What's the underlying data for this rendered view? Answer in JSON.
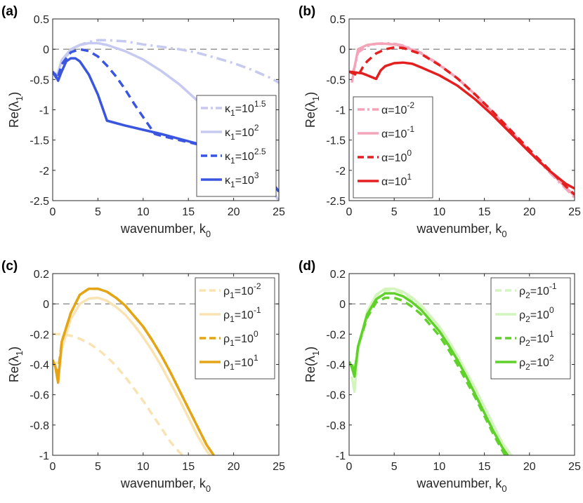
{
  "chart_data": [
    {
      "panel": "(a)",
      "type": "line",
      "xlabel": "wavenumber, k",
      "xlabel_sub": "0",
      "ylabel": "Re(λ",
      "ylabel_sub": "1",
      "ylabel_end": ")",
      "xlim": [
        0,
        25
      ],
      "ylim": [
        -2.5,
        0.5
      ],
      "xticks": [
        0,
        5,
        10,
        15,
        20,
        25
      ],
      "yticks": [
        0.5,
        0,
        -0.5,
        -1,
        -1.5,
        -2,
        -2.5
      ],
      "ytick_labels": [
        "0.5",
        "0",
        "-0.5",
        "-1",
        "-1.5",
        "-2",
        "-2.5"
      ],
      "legend_position": "lower-right",
      "series": [
        {
          "name": "κ1=10^1.5",
          "label_base": "κ",
          "label_sub": "1",
          "label_mid": "=10",
          "label_sup": "1.5",
          "color": "#c6c9f0",
          "dash": "dashdot",
          "x": [
            0,
            0.5,
            1,
            2,
            3,
            4,
            5,
            6,
            8,
            10,
            12,
            14,
            16,
            18,
            20,
            22,
            24,
            25
          ],
          "y": [
            -0.37,
            -0.42,
            -0.2,
            -0.03,
            0.07,
            0.12,
            0.15,
            0.15,
            0.13,
            0.08,
            0.04,
            0.0,
            -0.06,
            -0.14,
            -0.23,
            -0.34,
            -0.47,
            -0.55
          ]
        },
        {
          "name": "κ1=10^2",
          "label_base": "κ",
          "label_sub": "1",
          "label_mid": "=10",
          "label_sup": "2",
          "color": "#c6c9f0",
          "dash": "solid",
          "x": [
            0,
            0.5,
            1,
            2,
            3,
            4,
            5,
            6,
            8,
            10,
            12,
            14,
            16,
            18,
            20,
            22,
            24,
            25
          ],
          "y": [
            -0.37,
            -0.44,
            -0.18,
            0.0,
            0.07,
            0.1,
            0.1,
            0.07,
            -0.03,
            -0.17,
            -0.36,
            -0.58,
            -0.85,
            -1.15,
            -1.5,
            -1.88,
            -2.28,
            -2.5
          ]
        },
        {
          "name": "κ1=10^2.5",
          "label_base": "κ",
          "label_sub": "1",
          "label_mid": "=10",
          "label_sup": "2.5",
          "color": "#3a55df",
          "dash": "dashed",
          "x": [
            0,
            0.5,
            1,
            2,
            3,
            4,
            5,
            6,
            7,
            8,
            9,
            10,
            11.3,
            12,
            14,
            16,
            18,
            20,
            22,
            24,
            25
          ],
          "y": [
            -0.37,
            -0.5,
            -0.25,
            -0.05,
            0.0,
            -0.03,
            -0.12,
            -0.27,
            -0.45,
            -0.66,
            -0.9,
            -1.12,
            -1.4,
            -1.43,
            -1.5,
            -1.57,
            -1.65,
            -1.75,
            -1.9,
            -2.15,
            -2.35
          ]
        },
        {
          "name": "κ1=10^3",
          "label_base": "κ",
          "label_sub": "1",
          "label_mid": "=10",
          "label_sup": "3",
          "color": "#3a55df",
          "dash": "solid",
          "x": [
            0,
            0.3,
            0.6,
            0.9,
            1.5,
            2,
            2.5,
            3,
            4,
            5,
            6,
            7,
            8,
            10,
            12,
            14,
            16,
            18,
            20,
            22,
            24,
            25
          ],
          "y": [
            -0.38,
            -0.42,
            -0.52,
            -0.4,
            -0.2,
            -0.15,
            -0.15,
            -0.2,
            -0.42,
            -0.75,
            -1.18,
            -1.22,
            -1.26,
            -1.33,
            -1.4,
            -1.48,
            -1.56,
            -1.65,
            -1.75,
            -1.9,
            -2.15,
            -2.35
          ]
        }
      ]
    },
    {
      "panel": "(b)",
      "type": "line",
      "xlabel": "wavenumber, k",
      "xlabel_sub": "0",
      "ylabel": "Re(λ",
      "ylabel_sub": "1",
      "ylabel_end": ")",
      "xlim": [
        0,
        25
      ],
      "ylim": [
        -2.5,
        0.5
      ],
      "xticks": [
        0,
        5,
        10,
        15,
        20,
        25
      ],
      "yticks": [
        0.5,
        0,
        -0.5,
        -1,
        -1.5,
        -2,
        -2.5
      ],
      "ytick_labels": [
        "0.5",
        "0",
        "-0.5",
        "-1",
        "-1.5",
        "-2",
        "-2.5"
      ],
      "legend_position": "lower-left",
      "series": [
        {
          "name": "α=10^-2",
          "label_base": "α",
          "label_sub": "",
          "label_mid": "=10",
          "label_sup": "-2",
          "color": "#f4a4b8",
          "dash": "dashdot",
          "x": [
            0.3,
            0.6,
            1,
            2,
            3,
            4,
            5,
            6,
            8,
            10,
            12,
            14,
            16,
            18,
            20,
            22,
            24,
            25
          ],
          "y": [
            -0.42,
            -0.3,
            -0.05,
            0.05,
            0.09,
            0.1,
            0.09,
            0.06,
            -0.06,
            -0.25,
            -0.48,
            -0.76,
            -1.06,
            -1.37,
            -1.7,
            -2.0,
            -2.3,
            -2.45
          ]
        },
        {
          "name": "α=10^-1",
          "label_base": "α",
          "label_sub": "",
          "label_mid": "=10",
          "label_sup": "-1",
          "color": "#f4a4b8",
          "dash": "solid",
          "x": [
            0.3,
            0.6,
            1,
            2,
            3,
            4,
            5,
            6,
            8,
            10,
            12,
            14,
            16,
            18,
            20,
            22,
            24,
            25
          ],
          "y": [
            -0.55,
            -0.3,
            0.0,
            0.07,
            0.09,
            0.09,
            0.08,
            0.05,
            -0.07,
            -0.26,
            -0.48,
            -0.75,
            -1.05,
            -1.36,
            -1.68,
            -1.98,
            -2.28,
            -2.42
          ]
        },
        {
          "name": "α=10^0",
          "label_base": "α",
          "label_sub": "",
          "label_mid": "=10",
          "label_sup": "0",
          "color": "#e41f1f",
          "dash": "dashed",
          "x": [
            0,
            0.5,
            1,
            1.5,
            2,
            3,
            4,
            5,
            6,
            8,
            10,
            12,
            14,
            16,
            18,
            20,
            22,
            24,
            25
          ],
          "y": [
            -0.37,
            -0.4,
            -0.44,
            -0.3,
            -0.2,
            -0.07,
            0.0,
            0.03,
            0.02,
            -0.08,
            -0.26,
            -0.48,
            -0.75,
            -1.04,
            -1.35,
            -1.66,
            -1.96,
            -2.26,
            -2.4
          ]
        },
        {
          "name": "α=10^1",
          "label_base": "α",
          "label_sub": "",
          "label_mid": "=10",
          "label_sup": "1",
          "color": "#e41f1f",
          "dash": "solid",
          "x": [
            0,
            0.5,
            1,
            1.5,
            2,
            2.5,
            3,
            3.5,
            4,
            5,
            6,
            7,
            8,
            10,
            12,
            14,
            16,
            18,
            20,
            22,
            24,
            25
          ],
          "y": [
            -0.37,
            -0.38,
            -0.39,
            -0.4,
            -0.43,
            -0.46,
            -0.49,
            -0.35,
            -0.28,
            -0.23,
            -0.22,
            -0.24,
            -0.3,
            -0.43,
            -0.6,
            -0.83,
            -1.1,
            -1.4,
            -1.7,
            -1.98,
            -2.22,
            -2.3
          ]
        }
      ]
    },
    {
      "panel": "(c)",
      "type": "line",
      "xlabel": "wavenumber, k",
      "xlabel_sub": "0",
      "ylabel": "Re(λ",
      "ylabel_sub": "1",
      "ylabel_end": ")",
      "xlim": [
        0,
        25
      ],
      "ylim": [
        -1,
        0.2
      ],
      "xticks": [
        0,
        5,
        10,
        15,
        20,
        25
      ],
      "yticks": [
        0.2,
        0,
        -0.2,
        -0.4,
        -0.6,
        -0.8,
        -1
      ],
      "ytick_labels": [
        "0.2",
        "0",
        "-0.2",
        "-0.4",
        "-0.6",
        "-0.8",
        "-1"
      ],
      "legend_position": "top-right",
      "series": [
        {
          "name": "ρ1=10^-2",
          "label_base": "ρ",
          "label_sub": "1",
          "label_mid": "=10",
          "label_sup": "-2",
          "color": "#f9e3b3",
          "dash": "dashed",
          "x": [
            0,
            1,
            2,
            3,
            4,
            5,
            6,
            7,
            8,
            9,
            10,
            11,
            12,
            13,
            14,
            14.4
          ],
          "y": [
            -0.2,
            -0.2,
            -0.21,
            -0.23,
            -0.26,
            -0.3,
            -0.35,
            -0.41,
            -0.48,
            -0.56,
            -0.64,
            -0.73,
            -0.82,
            -0.91,
            -0.98,
            -1.0
          ]
        },
        {
          "name": "ρ1=10^-1",
          "label_base": "ρ",
          "label_sub": "1",
          "label_mid": "=10",
          "label_sup": "-1",
          "color": "#f9e3b3",
          "dash": "solid",
          "x": [
            0.3,
            0.6,
            1,
            2,
            3,
            4,
            5,
            6,
            7,
            8,
            9,
            10,
            11,
            12,
            13,
            14,
            15,
            16,
            17,
            17.4
          ],
          "y": [
            -0.38,
            -0.5,
            -0.3,
            -0.1,
            0.0,
            0.035,
            0.04,
            0.02,
            -0.02,
            -0.07,
            -0.14,
            -0.22,
            -0.31,
            -0.41,
            -0.52,
            -0.63,
            -0.75,
            -0.87,
            -0.97,
            -1.0
          ]
        },
        {
          "name": "ρ1=10^0",
          "label_base": "ρ",
          "label_sub": "1",
          "label_mid": "=10",
          "label_sup": "0",
          "color": "#e3a516",
          "dash": "dashed",
          "x": [
            0.5,
            0.8,
            1,
            2,
            3,
            4,
            5,
            6,
            7,
            8,
            9,
            10,
            11,
            12,
            13,
            14,
            15,
            16,
            17,
            17.8
          ],
          "y": [
            -0.48,
            -0.35,
            -0.25,
            -0.06,
            0.06,
            0.1,
            0.1,
            0.08,
            0.04,
            -0.01,
            -0.08,
            -0.15,
            -0.24,
            -0.34,
            -0.45,
            -0.57,
            -0.69,
            -0.81,
            -0.93,
            -1.0
          ]
        },
        {
          "name": "ρ1=10^1",
          "label_base": "ρ",
          "label_sub": "1",
          "label_mid": "=10",
          "label_sup": "1",
          "color": "#e3a516",
          "dash": "solid",
          "x": [
            0,
            0.3,
            0.6,
            1,
            2,
            3,
            4,
            5,
            6,
            7,
            8,
            9,
            10,
            11,
            12,
            13,
            14,
            15,
            16,
            17,
            17.8
          ],
          "y": [
            -0.37,
            -0.42,
            -0.52,
            -0.25,
            -0.06,
            0.06,
            0.1,
            0.1,
            0.08,
            0.04,
            -0.01,
            -0.08,
            -0.15,
            -0.24,
            -0.34,
            -0.45,
            -0.57,
            -0.69,
            -0.81,
            -0.93,
            -1.0
          ]
        }
      ]
    },
    {
      "panel": "(d)",
      "type": "line",
      "xlabel": "wavenumber, k",
      "xlabel_sub": "0",
      "ylabel": "Re(λ",
      "ylabel_sub": "1",
      "ylabel_end": ")",
      "xlim": [
        0,
        25
      ],
      "ylim": [
        -1,
        0.2
      ],
      "xticks": [
        0,
        5,
        10,
        15,
        20,
        25
      ],
      "yticks": [
        0.2,
        0,
        -0.2,
        -0.4,
        -0.6,
        -0.8,
        -1
      ],
      "ytick_labels": [
        "0.2",
        "0",
        "-0.2",
        "-0.4",
        "-0.6",
        "-0.8",
        "-1"
      ],
      "legend_position": "top-right",
      "series": [
        {
          "name": "ρ2=10^-1",
          "label_base": "ρ",
          "label_sub": "2",
          "label_mid": "=10",
          "label_sup": "-1",
          "color": "#d3f5bd",
          "dash": "dashed",
          "x": [
            0.3,
            0.6,
            1,
            2,
            3,
            4,
            5,
            6,
            7,
            8,
            9,
            10,
            11,
            12,
            13,
            14,
            15,
            16,
            17,
            17.6
          ],
          "y": [
            -0.4,
            -0.47,
            -0.3,
            -0.09,
            0.04,
            0.09,
            0.09,
            0.07,
            0.03,
            -0.02,
            -0.09,
            -0.16,
            -0.25,
            -0.35,
            -0.46,
            -0.58,
            -0.7,
            -0.82,
            -0.94,
            -1.0
          ]
        },
        {
          "name": "ρ2=10^0",
          "label_base": "ρ",
          "label_sub": "2",
          "label_mid": "=10",
          "label_sup": "0",
          "color": "#d3f5bd",
          "dash": "solid",
          "x": [
            0.3,
            0.6,
            1,
            2,
            3,
            4,
            5,
            6,
            7,
            8,
            9,
            10,
            11,
            12,
            13,
            14,
            15,
            16,
            17,
            18
          ],
          "y": [
            -0.48,
            -0.58,
            -0.3,
            -0.05,
            0.06,
            0.1,
            0.1,
            0.08,
            0.04,
            -0.01,
            -0.08,
            -0.15,
            -0.24,
            -0.34,
            -0.45,
            -0.56,
            -0.68,
            -0.8,
            -0.92,
            -1.0
          ]
        },
        {
          "name": "ρ2=10^1",
          "label_base": "ρ",
          "label_sub": "2",
          "label_mid": "=10",
          "label_sup": "1",
          "color": "#5fd12a",
          "dash": "dashed",
          "x": [
            0.3,
            0.6,
            1,
            2,
            3,
            4,
            5,
            6,
            7,
            8,
            9,
            10,
            11,
            12,
            13,
            14,
            15,
            16,
            17,
            17.3
          ],
          "y": [
            -0.4,
            -0.45,
            -0.28,
            -0.09,
            0.01,
            0.04,
            0.04,
            0.02,
            -0.02,
            -0.07,
            -0.14,
            -0.21,
            -0.3,
            -0.4,
            -0.51,
            -0.62,
            -0.74,
            -0.86,
            -0.97,
            -1.0
          ]
        },
        {
          "name": "ρ2=10^2",
          "label_base": "ρ",
          "label_sub": "2",
          "label_mid": "=10",
          "label_sup": "2",
          "color": "#5fd12a",
          "dash": "solid",
          "x": [
            0,
            0.3,
            0.6,
            1,
            2,
            3,
            4,
            5,
            6,
            7,
            8,
            9,
            10,
            11,
            12,
            13,
            14,
            15,
            16,
            17,
            17.6
          ],
          "y": [
            -0.38,
            -0.42,
            -0.48,
            -0.28,
            -0.07,
            0.03,
            0.07,
            0.07,
            0.05,
            0.01,
            -0.04,
            -0.11,
            -0.18,
            -0.27,
            -0.37,
            -0.48,
            -0.6,
            -0.72,
            -0.84,
            -0.95,
            -1.0
          ]
        }
      ]
    }
  ]
}
